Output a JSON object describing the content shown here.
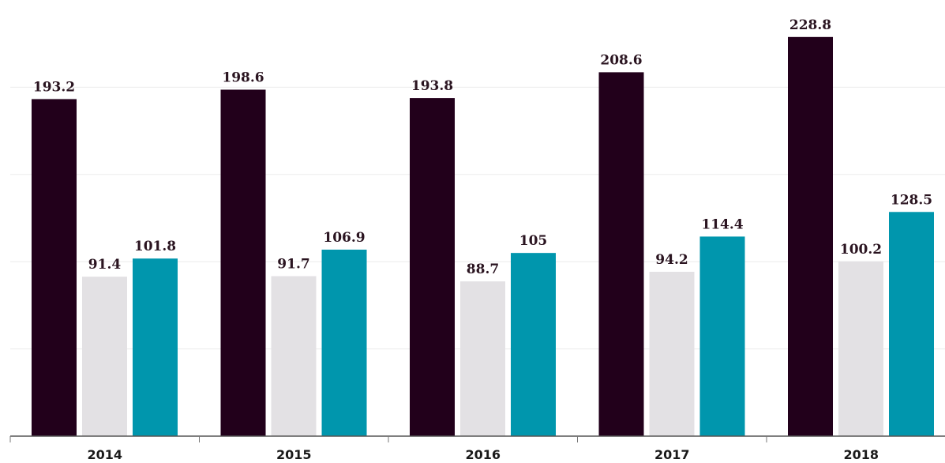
{
  "chart_data": {
    "type": "bar",
    "categories": [
      "2014",
      "2015",
      "2016",
      "2017",
      "2018"
    ],
    "series": [
      {
        "values": [
          193.2,
          198.6,
          193.8,
          208.6,
          228.8
        ],
        "color": "#22001b"
      },
      {
        "values": [
          91.4,
          91.7,
          88.7,
          94.2,
          100.2
        ],
        "color": "#e3e1e4"
      },
      {
        "values": [
          101.8,
          106.9,
          105,
          114.4,
          128.5
        ],
        "color": "#0096ad"
      }
    ],
    "value_labels": [
      [
        "193.2",
        "198.6",
        "193.8",
        "208.6",
        "228.8"
      ],
      [
        "91.4",
        "91.7",
        "88.7",
        "94.2",
        "100.2"
      ],
      [
        "101.8",
        "106.9",
        "105",
        "114.4",
        "128.5"
      ]
    ],
    "title": "",
    "xlabel": "",
    "ylabel": "",
    "ylim": [
      0,
      250
    ],
    "grid": true
  }
}
